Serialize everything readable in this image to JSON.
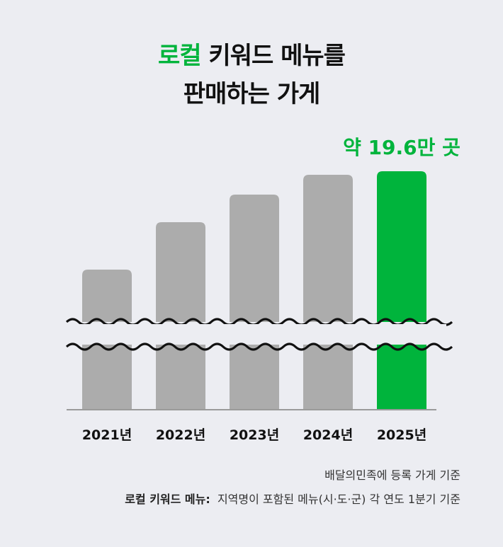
{
  "title": {
    "highlight": "로컬",
    "line1_rest": " 키워드 메뉴를",
    "line2": "판매하는 가게"
  },
  "chart_data": {
    "type": "bar",
    "categories": [
      "2021년",
      "2022년",
      "2023년",
      "2024년",
      "2025년"
    ],
    "values": [
      null,
      null,
      null,
      null,
      19.6
    ],
    "unit": "만 곳",
    "data_labels": [
      null,
      null,
      null,
      null,
      "약 19.6만 곳"
    ],
    "axis_break": true,
    "grid": false,
    "highlight_index": 4,
    "colors": {
      "default": "#acacac",
      "highlight": "#00b43c",
      "background": "#ecedf2"
    }
  },
  "footer": {
    "source": "배달의민족에 등록 가게 기준",
    "definition_label": "로컬 키워드 메뉴:",
    "definition_text": "지역명이 포함된 메뉴(시·도·군) 각 연도 1분기 기준"
  }
}
